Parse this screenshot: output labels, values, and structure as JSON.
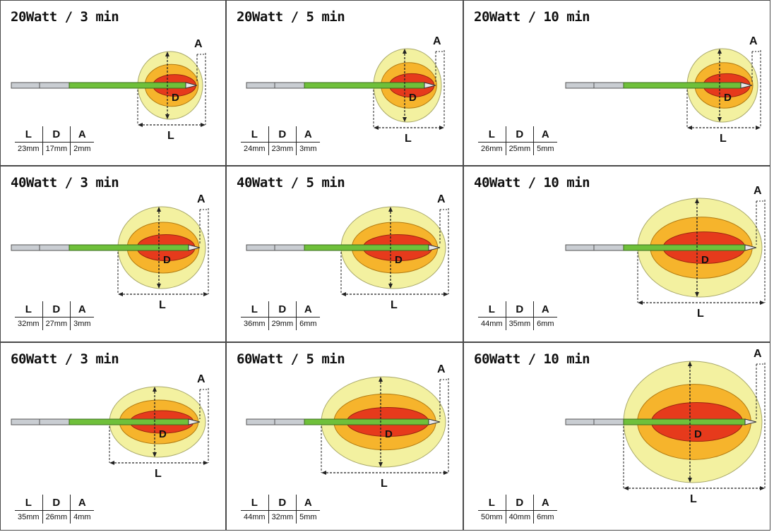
{
  "headers": {
    "length": "L",
    "diameter": "D",
    "ahead": "A"
  },
  "cells": [
    {
      "title": "20Watt / 3 min",
      "L": "23mm",
      "D": "17mm",
      "A": "2mm"
    },
    {
      "title": "20Watt / 5 min",
      "L": "24mm",
      "D": "23mm",
      "A": "3mm"
    },
    {
      "title": "20Watt / 10 min",
      "L": "26mm",
      "D": "25mm",
      "A": "5mm"
    },
    {
      "title": "40Watt / 3 min",
      "L": "32mm",
      "D": "27mm",
      "A": "3mm"
    },
    {
      "title": "40Watt / 5 min",
      "L": "36mm",
      "D": "29mm",
      "A": "6mm"
    },
    {
      "title": "40Watt / 10 min",
      "L": "44mm",
      "D": "35mm",
      "A": "6mm"
    },
    {
      "title": "60Watt / 3 min",
      "L": "35mm",
      "D": "26mm",
      "A": "4mm"
    },
    {
      "title": "60Watt / 5 min",
      "L": "44mm",
      "D": "32mm",
      "A": "5mm"
    },
    {
      "title": "60Watt / 10 min",
      "L": "50mm",
      "D": "40mm",
      "A": "6mm"
    }
  ],
  "colors": {
    "outer_zone": "#f3f1a0",
    "middle_zone": "#f6b42c",
    "core_zone": "#e63a1c",
    "needle": "#6fc03a",
    "handle": "#c9cdd2"
  }
}
